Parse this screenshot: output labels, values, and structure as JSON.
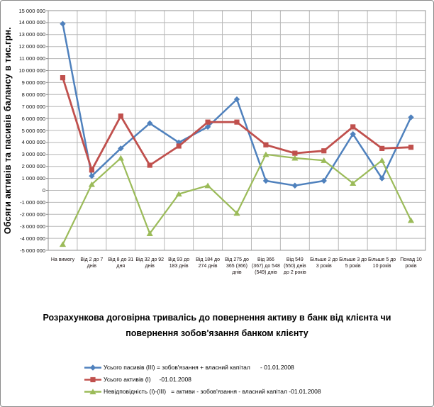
{
  "chart_data": {
    "type": "line",
    "title": "Розрахункова договірна тривалісь до повернення активу в банк від клієнта чи повернення зобов'язання банком клієнту",
    "ylabel": "Обсяги активів та пасивів балансу в тис.грн.",
    "xlabel": "",
    "ylim": [
      -5000000,
      15000000
    ],
    "y_tick_step": 1000000,
    "grid": true,
    "legend_position": "bottom-left",
    "categories": [
      "На вимогу",
      "Від 2 до 7 днів",
      "Від 8 до 31 дня",
      "Від 32 до 92 днів",
      "Від 93 до 183 днів",
      "Від 184 до 274 днів",
      "Від 275 до 365 (366) днів",
      "Від 366 (367) до 548 (549) днів",
      "Від 549 (550) днів до 2 років",
      "Більше 2 до 3 років",
      "Більше 3 до 5 років",
      "Більше 5 до 10 років",
      "Понад 10 років"
    ],
    "series": [
      {
        "name": "Усього пасивів (ІІІ) = зобов'язання + власний капітал      - 01.01.2008",
        "marker": "diamond",
        "color": "#4F81BD",
        "line_width": 2.5,
        "values": [
          13900000,
          1200000,
          3500000,
          5600000,
          4000000,
          5300000,
          7600000,
          800000,
          400000,
          800000,
          4700000,
          1000000,
          6100000
        ]
      },
      {
        "name": "Усього активів (І)     -01.01.2008",
        "marker": "square",
        "color": "#C0504D",
        "line_width": 2.8,
        "values": [
          9400000,
          1700000,
          6200000,
          2100000,
          3700000,
          5700000,
          5700000,
          3800000,
          3100000,
          3300000,
          5300000,
          3500000,
          3600000
        ]
      },
      {
        "name": "Невідповідність (І)-(ІІІ)   = активи - зобов'язання - власний капітал -01.01.2008",
        "marker": "triangle",
        "color": "#9BBB59",
        "line_width": 2.2,
        "values": [
          -4500000,
          500000,
          2700000,
          -3600000,
          -300000,
          400000,
          -1900000,
          3000000,
          2700000,
          2500000,
          600000,
          2500000,
          -2500000
        ]
      }
    ]
  },
  "colors": {
    "gridline": "#b8b8b8",
    "plot_border": "#909090",
    "figure_border": "#8a8a8a"
  }
}
